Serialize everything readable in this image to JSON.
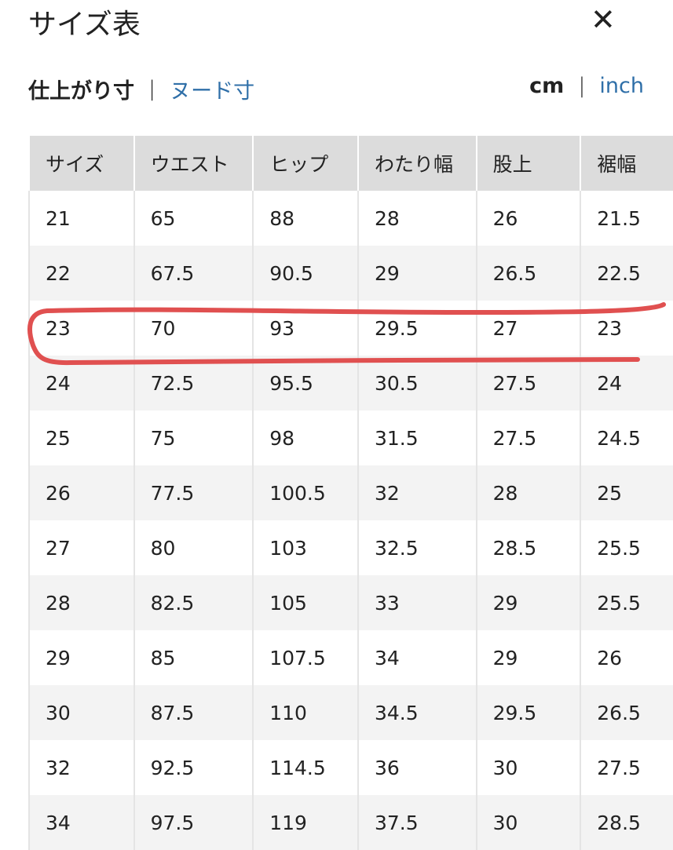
{
  "header": {
    "title": "サイズ表",
    "close_icon": "close-icon"
  },
  "tabs": {
    "finished": "仕上がり寸",
    "separator": "|",
    "nude": "ヌード寸"
  },
  "units": {
    "cm": "cm",
    "separator": "|",
    "inch": "inch"
  },
  "table": {
    "columns": [
      "サイズ",
      "ウエスト",
      "ヒップ",
      "わたり幅",
      "股上",
      "裾幅"
    ],
    "rows": [
      [
        "21",
        "65",
        "88",
        "28",
        "26",
        "21.5"
      ],
      [
        "22",
        "67.5",
        "90.5",
        "29",
        "26.5",
        "22.5"
      ],
      [
        "23",
        "70",
        "93",
        "29.5",
        "27",
        "23"
      ],
      [
        "24",
        "72.5",
        "95.5",
        "30.5",
        "27.5",
        "24"
      ],
      [
        "25",
        "75",
        "98",
        "31.5",
        "27.5",
        "24.5"
      ],
      [
        "26",
        "77.5",
        "100.5",
        "32",
        "28",
        "25"
      ],
      [
        "27",
        "80",
        "103",
        "32.5",
        "28.5",
        "25.5"
      ],
      [
        "28",
        "82.5",
        "105",
        "33",
        "29",
        "25.5"
      ],
      [
        "29",
        "85",
        "107.5",
        "34",
        "29",
        "26"
      ],
      [
        "30",
        "87.5",
        "110",
        "34.5",
        "29.5",
        "26.5"
      ],
      [
        "32",
        "92.5",
        "114.5",
        "36",
        "30",
        "27.5"
      ],
      [
        "34",
        "97.5",
        "119",
        "37.5",
        "30",
        "28.5"
      ]
    ]
  },
  "annotation": {
    "color": "#e05050",
    "highlighted_size": "23"
  }
}
